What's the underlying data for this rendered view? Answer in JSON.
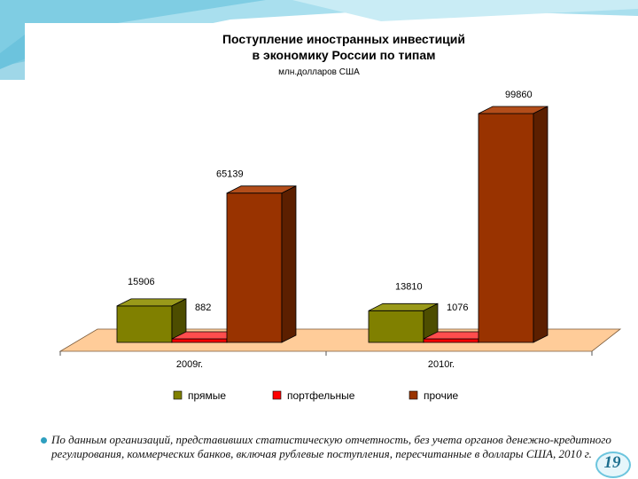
{
  "slide": {
    "footnote": "По данным организаций, представивших статистическую отчетность, без учета органов денежно-кредитного регулирования, коммерческих банков, включая рублевые поступления, пересчитанные в доллары США, 2010 г.",
    "page_number": "19",
    "accent_color": "#2e9fbf"
  },
  "chart_data": {
    "type": "bar",
    "title_lines": [
      "Поступление иностранных инвестиций",
      "в экономику России по типам"
    ],
    "subtitle": "млн.долларов США",
    "categories": [
      "2009г.",
      "2010г."
    ],
    "series": [
      {
        "name": "прямые",
        "values": [
          15906,
          13810
        ],
        "color": "#808000",
        "side_color": "#4d4d00",
        "top_color": "#9a9a1a"
      },
      {
        "name": "портфельные",
        "values": [
          882,
          1076
        ],
        "color": "#ff0000",
        "side_color": "#990000",
        "top_color": "#ff4d4d"
      },
      {
        "name": "прочие",
        "values": [
          65139,
          99860
        ],
        "color": "#993300",
        "side_color": "#5c1f00",
        "top_color": "#b34d1a"
      }
    ],
    "data_labels": [
      [
        "15906",
        "13810"
      ],
      [
        "882",
        "1076"
      ],
      [
        "65139",
        "99860"
      ]
    ],
    "ylim": [
      0,
      100000
    ],
    "legend_position": "bottom",
    "grid": false,
    "floor_color": "#ffcc99"
  }
}
